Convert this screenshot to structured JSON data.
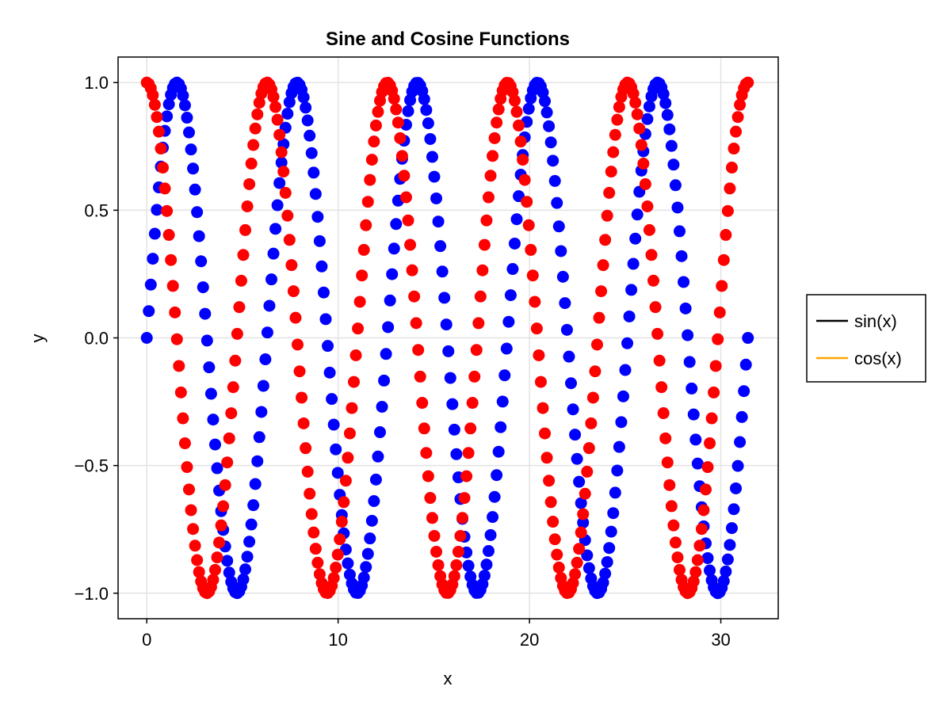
{
  "chart_data": {
    "type": "scatter",
    "title": "Sine and Cosine Functions",
    "xlabel": "x",
    "ylabel": "y",
    "xlim": [
      -1.5,
      33
    ],
    "ylim": [
      -1.1,
      1.1
    ],
    "x_ticks": [
      0,
      10,
      20,
      30
    ],
    "x_tick_labels": [
      "0",
      "10",
      "20",
      "30"
    ],
    "y_ticks": [
      -1.0,
      -0.5,
      0.0,
      0.5,
      1.0
    ],
    "y_tick_labels": [
      "−1.0",
      "−0.5",
      "0.0",
      "0.5",
      "1.0"
    ],
    "grid": true,
    "legend_position": "right",
    "x_range": [
      0,
      31.4159
    ],
    "point_count": 300,
    "series": [
      {
        "name": "sin(x)",
        "function": "sin",
        "marker_color": "#0000ff",
        "legend_color": "#000000"
      },
      {
        "name": "cos(x)",
        "function": "cos",
        "marker_color": "#ff0000",
        "legend_color": "#ffa500"
      }
    ]
  }
}
